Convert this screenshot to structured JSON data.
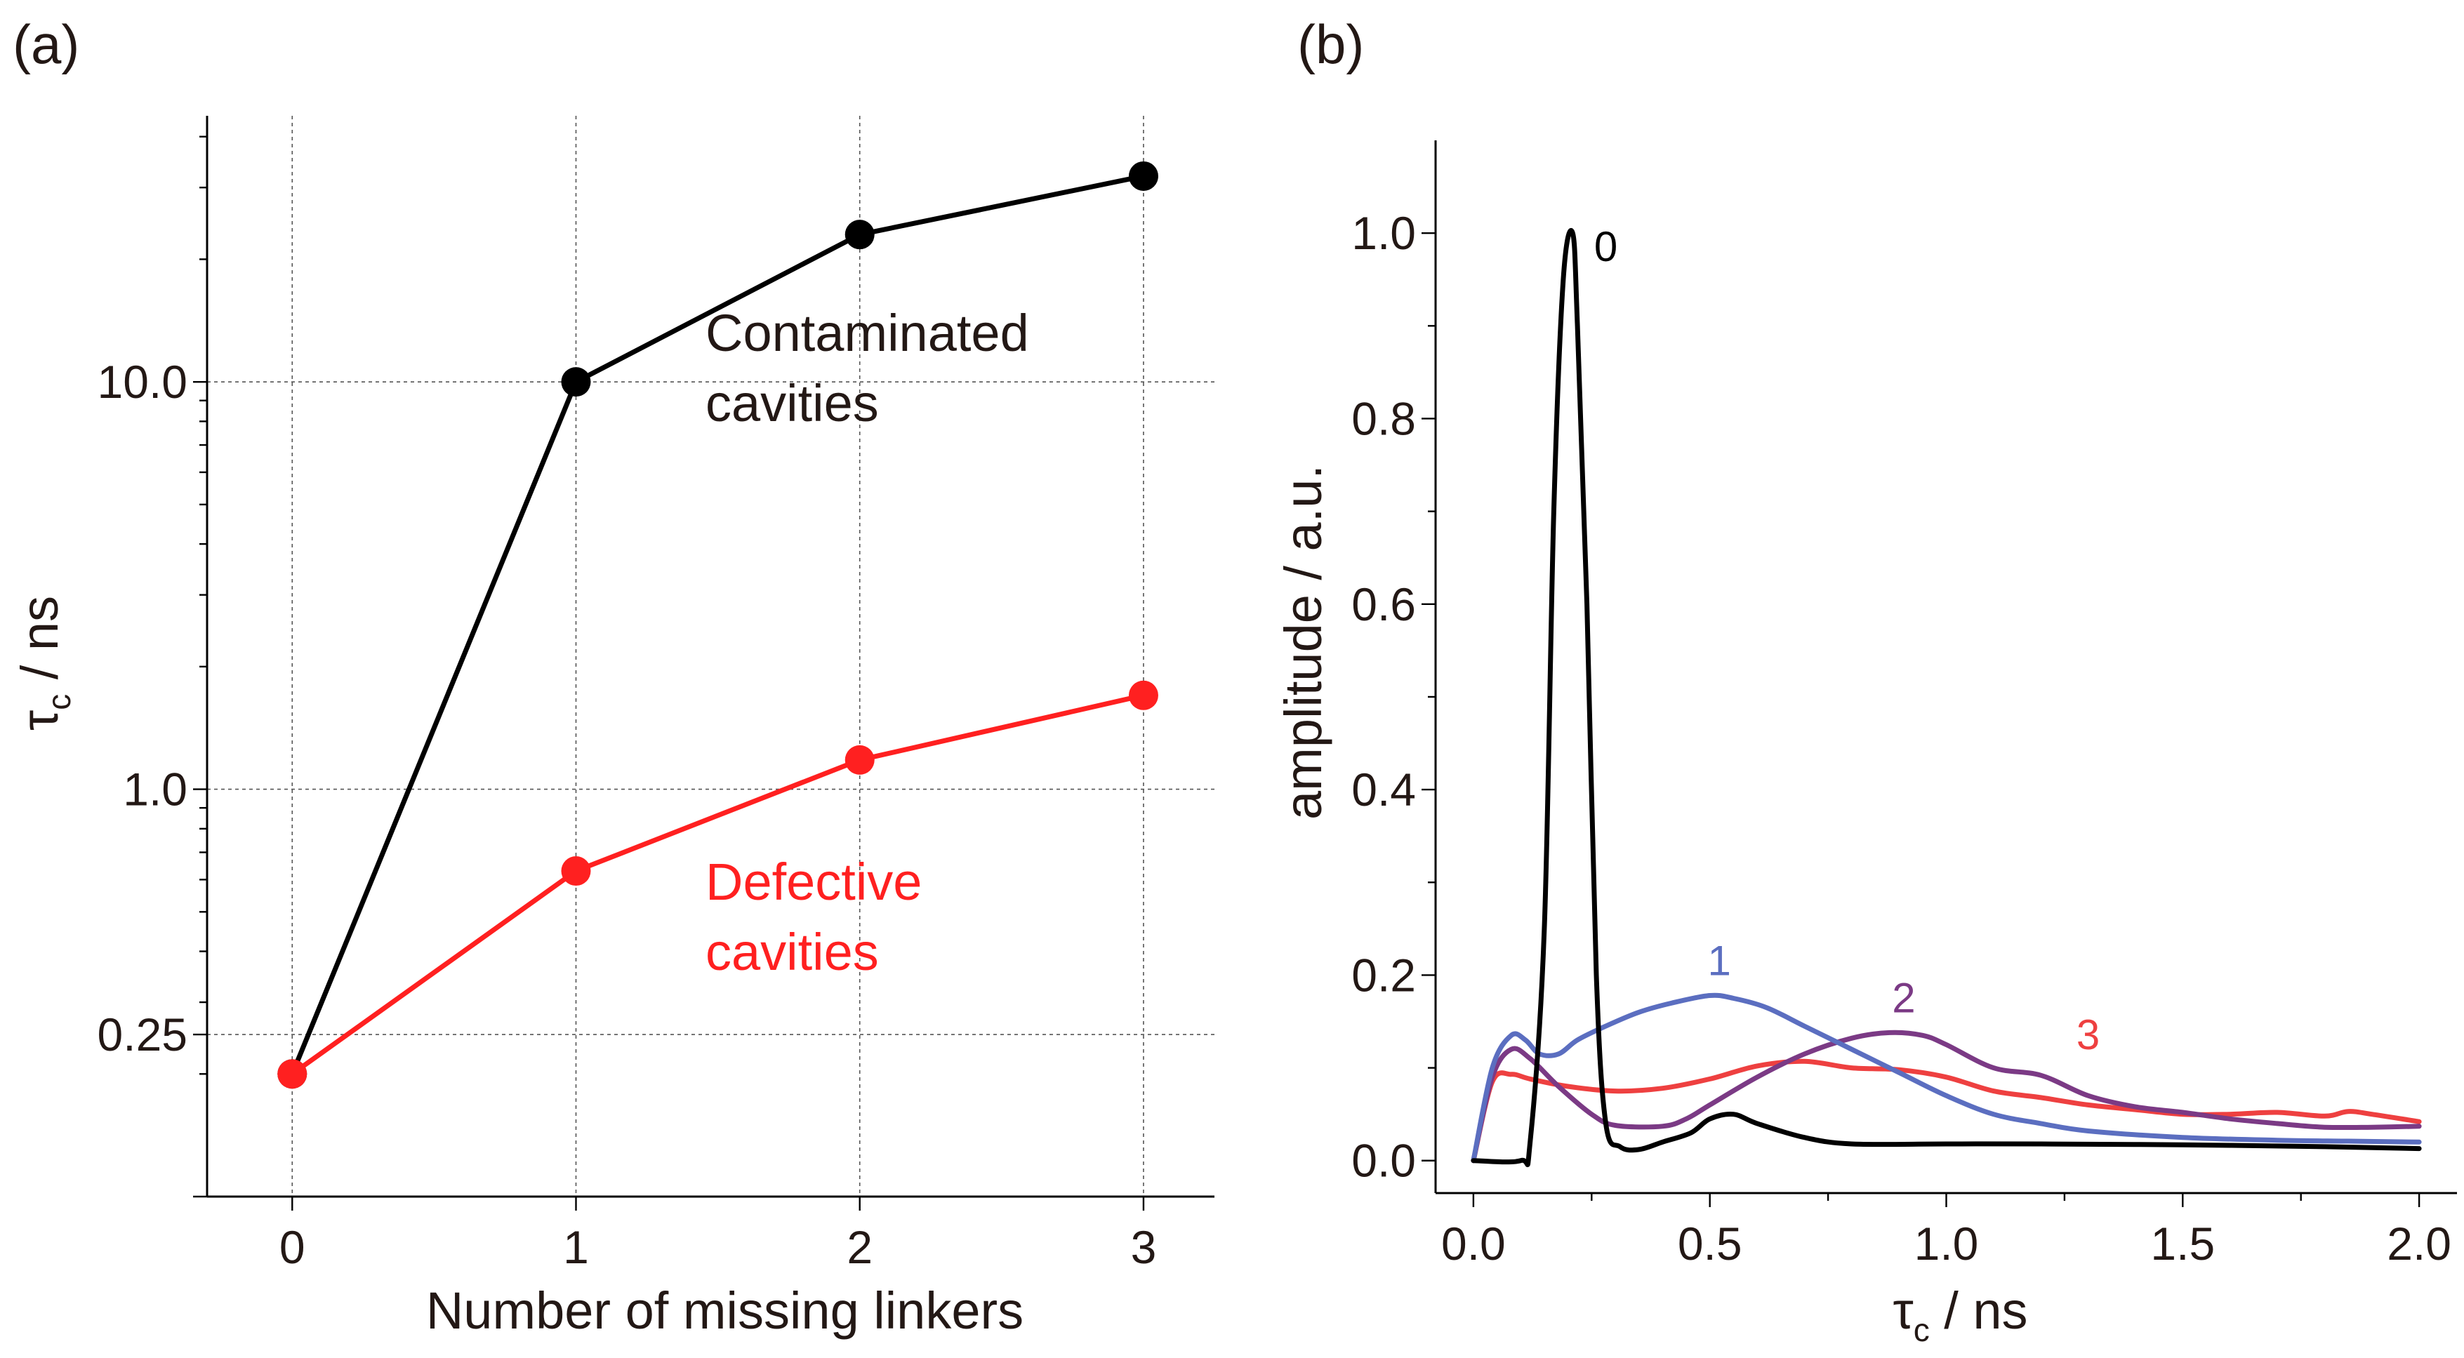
{
  "panels": {
    "a": "(a)",
    "b": "(b)"
  },
  "chart_data": [
    {
      "type": "line",
      "panel": "(a)",
      "xlabel": "Number of missing linkers",
      "ylabel_main": "τ",
      "ylabel_sub": "c",
      "ylabel_unit": " / ns",
      "yscale": "log",
      "categories": [
        0,
        1,
        2,
        3
      ],
      "xlim": [
        -0.3,
        3.25
      ],
      "ylim": [
        0.1,
        45
      ],
      "ytick_values": [
        0.25,
        1.0,
        10.0
      ],
      "ytick_labels": [
        "0.25",
        "1.0",
        "10.0"
      ],
      "grid": true,
      "series": [
        {
          "name": "Contaminated cavities",
          "label_lines": [
            "Contaminated",
            "cavities"
          ],
          "color": "#000000",
          "values": [
            0.2,
            10.0,
            23.0,
            32.0
          ]
        },
        {
          "name": "Defective cavities",
          "label_lines": [
            "Defective",
            "cavities"
          ],
          "color": "#ff2020",
          "values": [
            0.2,
            0.63,
            1.18,
            1.7
          ]
        }
      ]
    },
    {
      "type": "line",
      "panel": "(b)",
      "xlabel_main": "τ",
      "xlabel_sub": "c",
      "xlabel_unit": " / ns",
      "ylabel": "amplitude / a.u.",
      "xlim": [
        -0.08,
        2.08
      ],
      "ylim": [
        -0.035,
        1.1
      ],
      "xticks": [
        0.0,
        0.5,
        1.0,
        1.5,
        2.0
      ],
      "xtick_labels": [
        "0.0",
        "0.5",
        "1.0",
        "1.5",
        "2.0"
      ],
      "yticks": [
        0.0,
        0.2,
        0.4,
        0.6,
        0.8,
        1.0
      ],
      "ytick_labels": [
        "0.0",
        "0.2",
        "0.4",
        "0.6",
        "0.8",
        "1.0"
      ],
      "grid": false,
      "series": [
        {
          "name": "0",
          "color": "#000000",
          "x": [
            0,
            0.1,
            0.12,
            0.15,
            0.17,
            0.19,
            0.21,
            0.22,
            0.24,
            0.26,
            0.28,
            0.31,
            0.35,
            0.4,
            0.46,
            0.5,
            0.55,
            0.6,
            0.7,
            0.8,
            1.0,
            1.2,
            1.5,
            1.8,
            2.0
          ],
          "y": [
            0,
            0,
            0.02,
            0.25,
            0.7,
            0.95,
            1.0,
            0.9,
            0.6,
            0.2,
            0.04,
            0.015,
            0.012,
            0.02,
            0.03,
            0.045,
            0.05,
            0.04,
            0.025,
            0.018,
            0.018,
            0.018,
            0.017,
            0.015,
            0.013
          ],
          "label": "0",
          "label_at": [
            0.28,
            0.97
          ]
        },
        {
          "name": "1",
          "color": "#5b6ec0",
          "x": [
            0,
            0.04,
            0.08,
            0.11,
            0.14,
            0.18,
            0.22,
            0.28,
            0.35,
            0.42,
            0.5,
            0.55,
            0.62,
            0.7,
            0.8,
            0.9,
            1.0,
            1.1,
            1.2,
            1.3,
            1.5,
            1.7,
            1.85,
            2.0
          ],
          "y": [
            0,
            0.1,
            0.135,
            0.13,
            0.115,
            0.115,
            0.13,
            0.145,
            0.16,
            0.17,
            0.178,
            0.175,
            0.165,
            0.145,
            0.12,
            0.095,
            0.07,
            0.05,
            0.04,
            0.032,
            0.025,
            0.022,
            0.021,
            0.02
          ],
          "label": "1",
          "label_at": [
            0.52,
            0.2
          ]
        },
        {
          "name": "2",
          "color": "#7b3a85",
          "x": [
            0,
            0.04,
            0.08,
            0.12,
            0.18,
            0.25,
            0.3,
            0.4,
            0.45,
            0.5,
            0.6,
            0.7,
            0.8,
            0.88,
            0.95,
            1.0,
            1.1,
            1.2,
            1.3,
            1.4,
            1.5,
            1.6,
            1.7,
            1.8,
            1.9,
            2.0
          ],
          "y": [
            0,
            0.09,
            0.12,
            0.11,
            0.08,
            0.05,
            0.038,
            0.037,
            0.045,
            0.06,
            0.09,
            0.115,
            0.132,
            0.138,
            0.135,
            0.125,
            0.1,
            0.092,
            0.07,
            0.058,
            0.052,
            0.045,
            0.04,
            0.036,
            0.036,
            0.037
          ],
          "label": "2",
          "label_at": [
            0.91,
            0.16
          ]
        },
        {
          "name": "3",
          "color": "#ee4040",
          "x": [
            0,
            0.04,
            0.08,
            0.12,
            0.2,
            0.3,
            0.4,
            0.5,
            0.6,
            0.7,
            0.8,
            0.9,
            1.0,
            1.1,
            1.2,
            1.3,
            1.4,
            1.5,
            1.6,
            1.7,
            1.8,
            1.85,
            1.9,
            2.0
          ],
          "y": [
            0,
            0.085,
            0.093,
            0.088,
            0.08,
            0.075,
            0.078,
            0.088,
            0.102,
            0.107,
            0.1,
            0.098,
            0.09,
            0.075,
            0.068,
            0.06,
            0.055,
            0.05,
            0.05,
            0.052,
            0.048,
            0.053,
            0.05,
            0.042
          ],
          "label": "3",
          "label_at": [
            1.3,
            0.12
          ]
        }
      ]
    }
  ]
}
